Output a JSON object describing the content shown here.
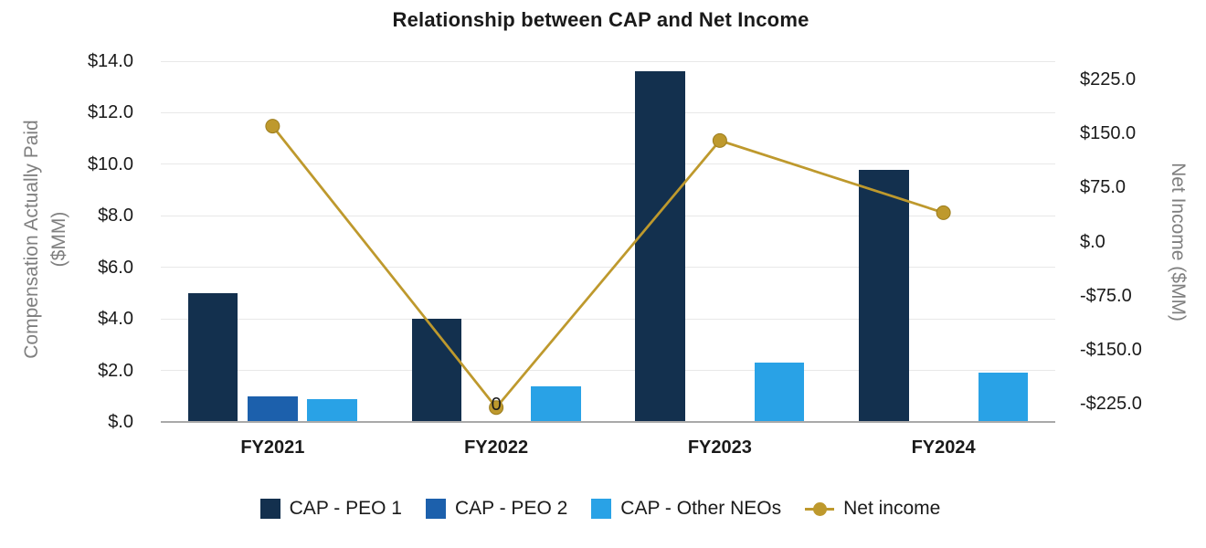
{
  "title": "Relationship between CAP and Net Income",
  "palette": {
    "peo1": "#13304E",
    "peo2": "#1C60AC",
    "other_neos": "#29A2E6",
    "net_income": "#BE992D",
    "gridline": "#E8E8E8",
    "axis_line": "#A9A9A9",
    "axis_title_text": "#7F7F7F",
    "label_text": "#1A1A1A"
  },
  "chart_data": {
    "type": "combo-bar-line",
    "title": "Relationship between CAP and Net Income",
    "categories": [
      "FY2021",
      "FY2022",
      "FY2023",
      "FY2024"
    ],
    "bar_series": [
      {
        "name": "CAP - PEO 1",
        "color": "#13304E",
        "values": [
          5.0,
          4.0,
          13.6,
          9.8
        ]
      },
      {
        "name": "CAP - PEO 2",
        "color": "#1C60AC",
        "values": [
          1.0,
          0,
          null,
          null
        ]
      },
      {
        "name": "CAP - Other NEOs",
        "color": "#29A2E6",
        "values": [
          0.9,
          1.4,
          2.3,
          1.9
        ]
      }
    ],
    "line_series": {
      "name": "Net income",
      "color": "#BE992D",
      "axis": "right",
      "values": [
        160,
        -230,
        140,
        40
      ]
    },
    "data_labels": [
      {
        "series": "CAP - PEO 2",
        "category": "FY2022",
        "text": "0"
      }
    ],
    "left_axis": {
      "title": "Compensation Actually Paid ($MM)",
      "title_lines": [
        "Compensation Actually Paid",
        "($MM)"
      ],
      "ticks": [
        "$14.0",
        "$12.0",
        "$10.0",
        "$8.0",
        "$6.0",
        "$4.0",
        "$2.0",
        "$.0"
      ],
      "tick_values": [
        14,
        12,
        10,
        8,
        6,
        4,
        2,
        0
      ],
      "min": 0,
      "max": 14
    },
    "right_axis": {
      "title": "Net Income ($MM)",
      "ticks": [
        "$225.0",
        "$150.0",
        "$75.0",
        "$.0",
        "-$75.0",
        "-$150.0",
        "-$225.0"
      ],
      "tick_values": [
        225,
        150,
        75,
        0,
        -75,
        -150,
        -225
      ],
      "min": -250,
      "max": 250
    },
    "legend": {
      "position": "bottom",
      "entries": [
        "CAP - PEO 1",
        "CAP - PEO 2",
        "CAP - Other NEOs",
        "Net income"
      ]
    },
    "grid": true
  }
}
